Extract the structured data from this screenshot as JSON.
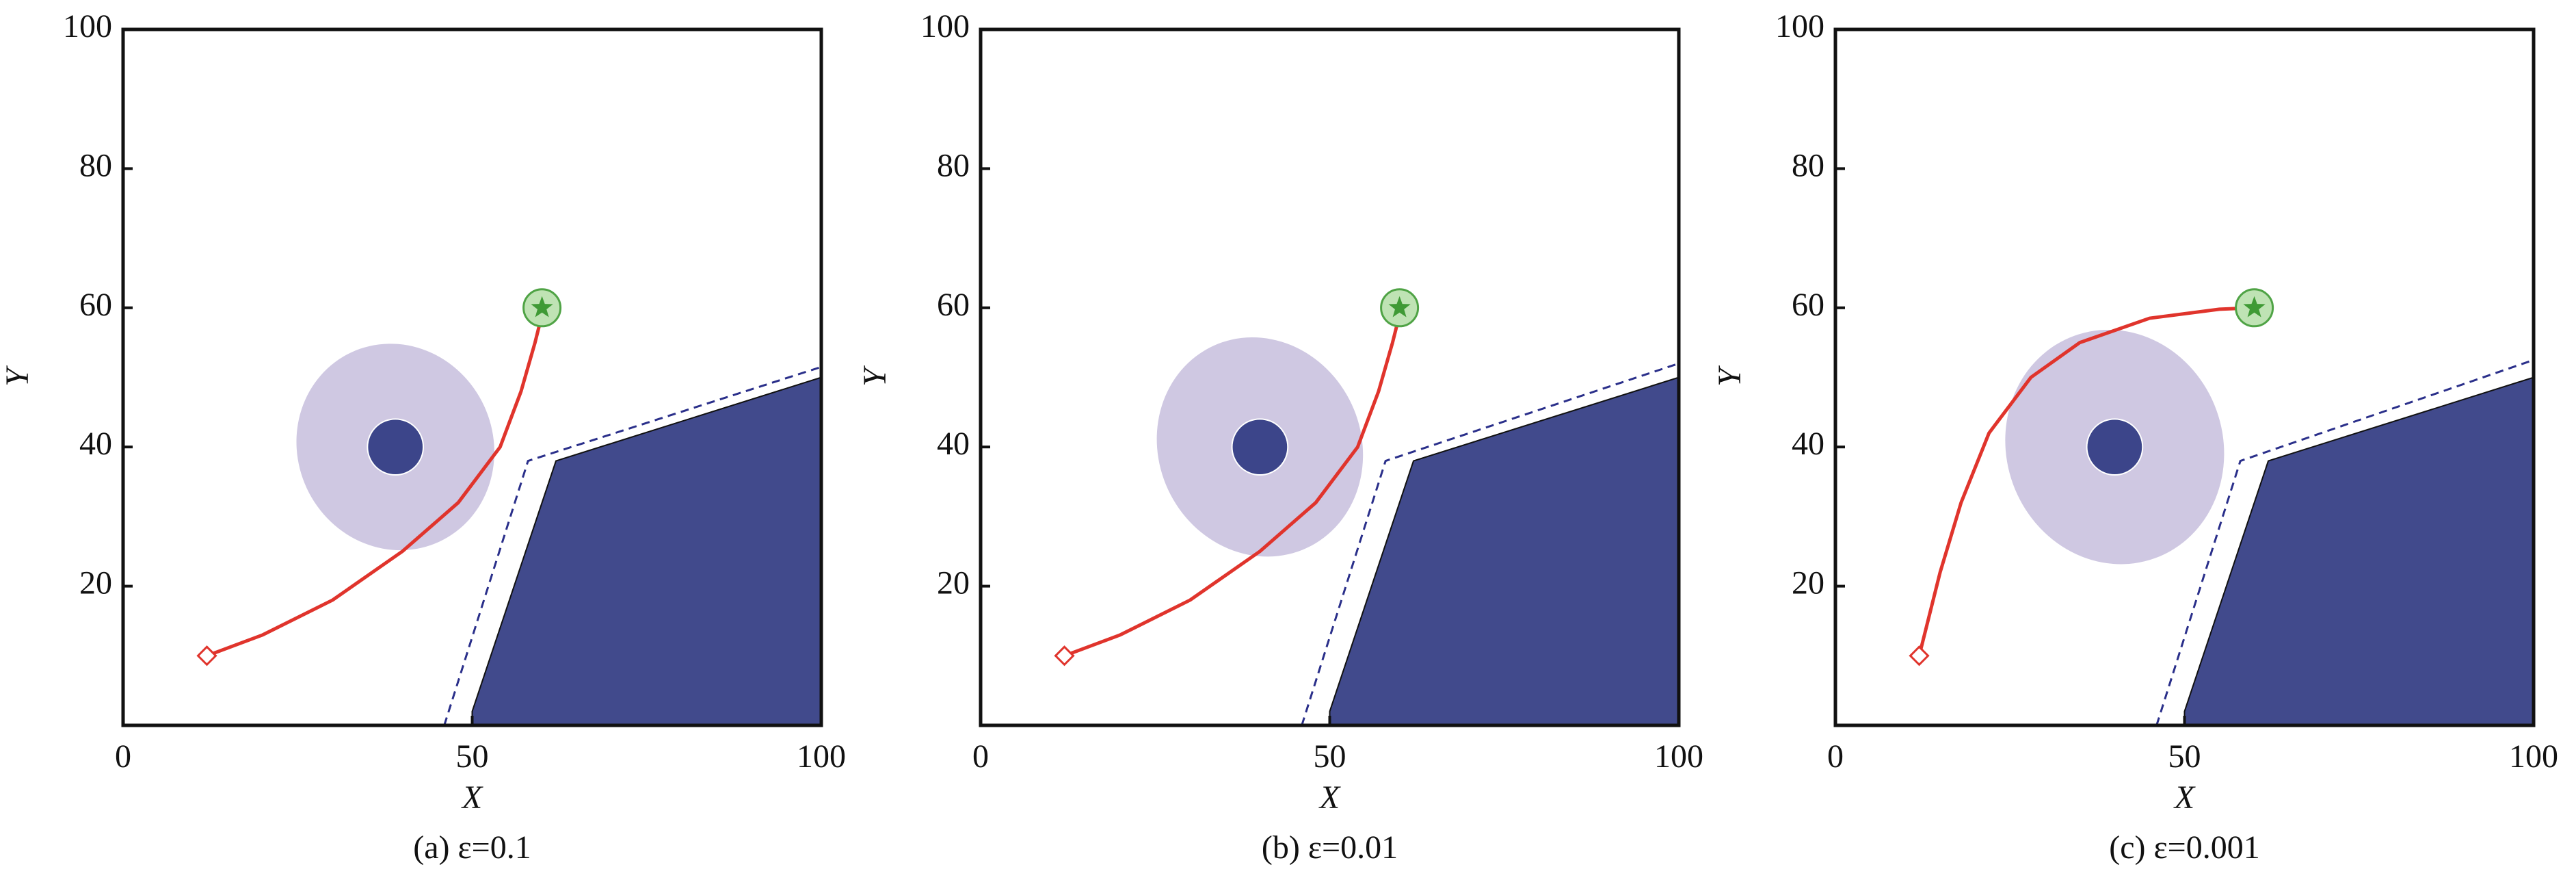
{
  "chart_data": [
    {
      "type": "line",
      "title": "(a) ε=0.1",
      "xlabel": "X",
      "ylabel": "Y",
      "xlim": [
        0,
        100
      ],
      "ylim": [
        0,
        100
      ],
      "xticks": [
        0,
        50,
        100
      ],
      "yticks": [
        20,
        40,
        60,
        80,
        100
      ],
      "series": [
        {
          "color": "#e0342c",
          "x": [
            12,
            20,
            30,
            40,
            48,
            54,
            57,
            59,
            60
          ],
          "values": [
            10,
            13,
            18,
            25,
            32,
            40,
            48,
            55,
            59
          ]
        }
      ],
      "start": {
        "x": 12,
        "y": 10
      },
      "goal": {
        "x": 60,
        "y": 60
      },
      "ellipse": {
        "center": [
          39,
          40
        ],
        "radii": [
          14,
          15
        ],
        "angle": -25,
        "core_radius": 4
      },
      "obstacle": {
        "x": [
          50,
          50,
          62,
          100,
          100
        ],
        "y": [
          0,
          2,
          38,
          50,
          0
        ]
      },
      "boundary": {
        "x": [
          46,
          58,
          100
        ],
        "y": [
          0,
          38,
          51.5
        ]
      }
    },
    {
      "type": "line",
      "title": "(b) ε=0.01",
      "xlabel": "X",
      "ylabel": "Y",
      "xlim": [
        0,
        100
      ],
      "ylim": [
        0,
        100
      ],
      "xticks": [
        0,
        50,
        100
      ],
      "yticks": [
        20,
        40,
        60,
        80,
        100
      ],
      "series": [
        {
          "color": "#e0342c",
          "x": [
            12,
            20,
            30,
            40,
            48,
            54,
            57,
            59,
            60
          ],
          "values": [
            10,
            13,
            18,
            25,
            32,
            40,
            48,
            55,
            59
          ]
        }
      ],
      "start": {
        "x": 12,
        "y": 10
      },
      "goal": {
        "x": 60,
        "y": 60
      },
      "ellipse": {
        "center": [
          40,
          40
        ],
        "radii": [
          14.5,
          16
        ],
        "angle": -25,
        "core_radius": 4
      },
      "obstacle": {
        "x": [
          50,
          50,
          62,
          100,
          100
        ],
        "y": [
          0,
          2,
          38,
          50,
          0
        ]
      },
      "boundary": {
        "x": [
          46,
          58,
          100
        ],
        "y": [
          0,
          38,
          52
        ]
      }
    },
    {
      "type": "line",
      "title": "(c) ε=0.001",
      "xlabel": "X",
      "ylabel": "Y",
      "xlim": [
        0,
        100
      ],
      "ylim": [
        0,
        100
      ],
      "xticks": [
        0,
        50,
        100
      ],
      "yticks": [
        20,
        40,
        60,
        80,
        100
      ],
      "series": [
        {
          "color": "#e0342c",
          "x": [
            12,
            13,
            15,
            18,
            22,
            28,
            35,
            45,
            55,
            60
          ],
          "values": [
            10,
            14,
            22,
            32,
            42,
            50,
            55,
            58.5,
            59.8,
            60
          ]
        }
      ],
      "start": {
        "x": 12,
        "y": 10
      },
      "goal": {
        "x": 60,
        "y": 60
      },
      "ellipse": {
        "center": [
          40,
          40
        ],
        "radii": [
          15.5,
          17
        ],
        "angle": -20,
        "core_radius": 4
      },
      "obstacle": {
        "x": [
          50,
          50,
          62,
          100,
          100
        ],
        "y": [
          0,
          2,
          38,
          50,
          0
        ]
      },
      "boundary": {
        "x": [
          46,
          58,
          100
        ],
        "y": [
          0,
          38,
          52.5
        ]
      }
    }
  ]
}
